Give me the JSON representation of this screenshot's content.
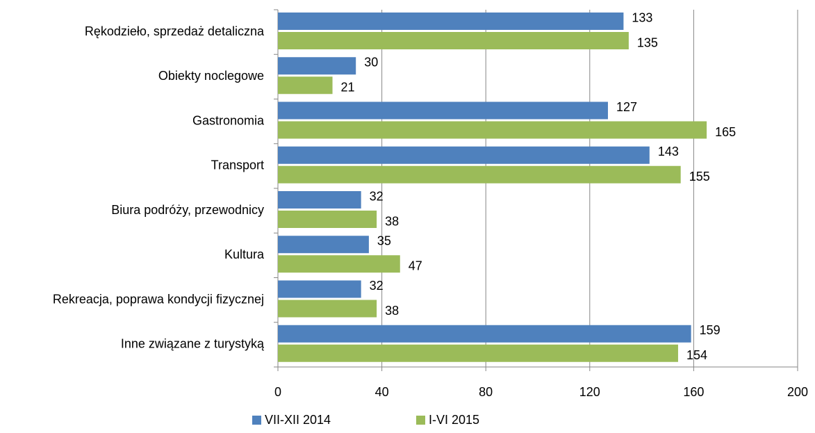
{
  "chart_data": {
    "type": "hbar",
    "categories": [
      "Rękodzieło, sprzedaż detaliczna",
      "Obiekty noclegowe",
      "Gastronomia",
      "Transport",
      "Biura podróży, przewodnicy",
      "Kultura",
      "Rekreacja, poprawa kondycji fizycznej",
      "Inne związane z turystyką"
    ],
    "series": [
      {
        "name": "VII-XII 2014",
        "color": "#4f81bd",
        "values": [
          133,
          30,
          127,
          143,
          32,
          35,
          32,
          159
        ]
      },
      {
        "name": "I-VI 2015",
        "color": "#9bbb59",
        "values": [
          135,
          21,
          165,
          155,
          38,
          47,
          38,
          154
        ]
      }
    ],
    "xlim": [
      0,
      200
    ],
    "xticks": [
      0,
      40,
      80,
      120,
      160,
      200
    ],
    "grid": true,
    "legend": "bottom"
  }
}
